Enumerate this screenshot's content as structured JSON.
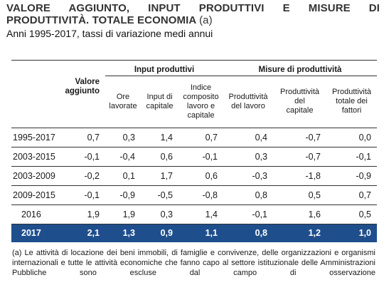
{
  "title": {
    "line1": "VALORE AGGIUNTO, INPUT PRODUTTIVI E MISURE DI",
    "line2": "PRODUTTIVITÀ. TOTALE ECONOMIA",
    "note_ref": "(a)",
    "subtitle": "Anni 1995-2017, tassi di variazione medi annui"
  },
  "table": {
    "groups": {
      "input": "Input produttivi",
      "misure": "Misure di produttività"
    },
    "columns": {
      "valore": [
        "Valore",
        "aggiunto"
      ],
      "ore": [
        "Ore",
        "lavorate"
      ],
      "capitale": [
        "Input di",
        "capitale"
      ],
      "indice": [
        "Indice",
        "composito",
        "lavoro e",
        "capitale"
      ],
      "prod_lavoro": [
        "Produttività",
        "del lavoro"
      ],
      "prod_capitale": [
        "Produttività",
        "del",
        "capitale"
      ],
      "prod_totale": [
        "Produttività",
        "totale dei",
        "fattori"
      ]
    },
    "rows": [
      {
        "label": "1995-2017",
        "values": [
          "0,7",
          "0,3",
          "1,4",
          "0,7",
          "0,4",
          "-0,7",
          "0,0"
        ]
      },
      {
        "label": "2003-2015",
        "values": [
          "-0,1",
          "-0,4",
          "0,6",
          "-0,1",
          "0,3",
          "-0,7",
          "-0,1"
        ]
      },
      {
        "label": "2003-2009",
        "values": [
          "-0,2",
          "0,1",
          "1,7",
          "0,6",
          "-0,3",
          "-1,8",
          "-0,9"
        ]
      },
      {
        "label": "2009-2015",
        "values": [
          "-0,1",
          "-0,9",
          "-0,5",
          "-0,8",
          "0,8",
          "0,5",
          "0,7"
        ]
      },
      {
        "label": "2016",
        "values": [
          "1,9",
          "1,9",
          "0,3",
          "1,4",
          "-0,1",
          "1,6",
          "0,5"
        ]
      },
      {
        "label": "2017",
        "values": [
          "2,1",
          "1,3",
          "0,9",
          "1,1",
          "0,8",
          "1,2",
          "1,0"
        ]
      }
    ],
    "highlight_color": "#1f4e8c"
  },
  "footnote": "(a) Le attività di locazione dei beni immobili, di famiglie e convivenze, delle organizzazioni e organismi internazionali e tutte le attività economiche che fanno capo al settore istituzionale delle Amministrazioni Pubbliche sono escluse dal campo di osservazione"
}
